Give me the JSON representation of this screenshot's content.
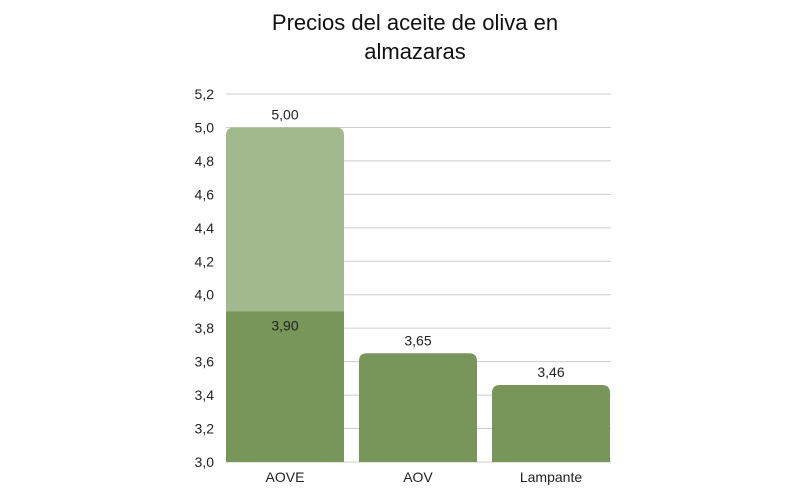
{
  "chart_data": {
    "type": "bar",
    "title_lines": [
      "Precios del aceite de oliva en",
      "almazaras"
    ],
    "categories": [
      "AOVE",
      "AOV",
      "Lampante"
    ],
    "series": [
      {
        "values": [
          3.9,
          3.65,
          3.46
        ],
        "labels": [
          "3,90",
          "3,65",
          "3,46"
        ]
      },
      {
        "values": [
          5.0,
          null,
          null
        ],
        "labels": [
          "5,00",
          "",
          ""
        ]
      }
    ],
    "y_ticks": [
      "3,0",
      "3,2",
      "3,4",
      "3,6",
      "3,8",
      "4,0",
      "4,2",
      "4,4",
      "4,6",
      "4,8",
      "5,0",
      "5,2"
    ],
    "ylim": [
      3.0,
      5.2
    ],
    "ystep": 0.2,
    "grid": true,
    "legend": "none",
    "colors": {
      "base": "#789659",
      "high": "#a2b98d",
      "grid": "#cccccc"
    },
    "xlabel": "",
    "ylabel": ""
  }
}
